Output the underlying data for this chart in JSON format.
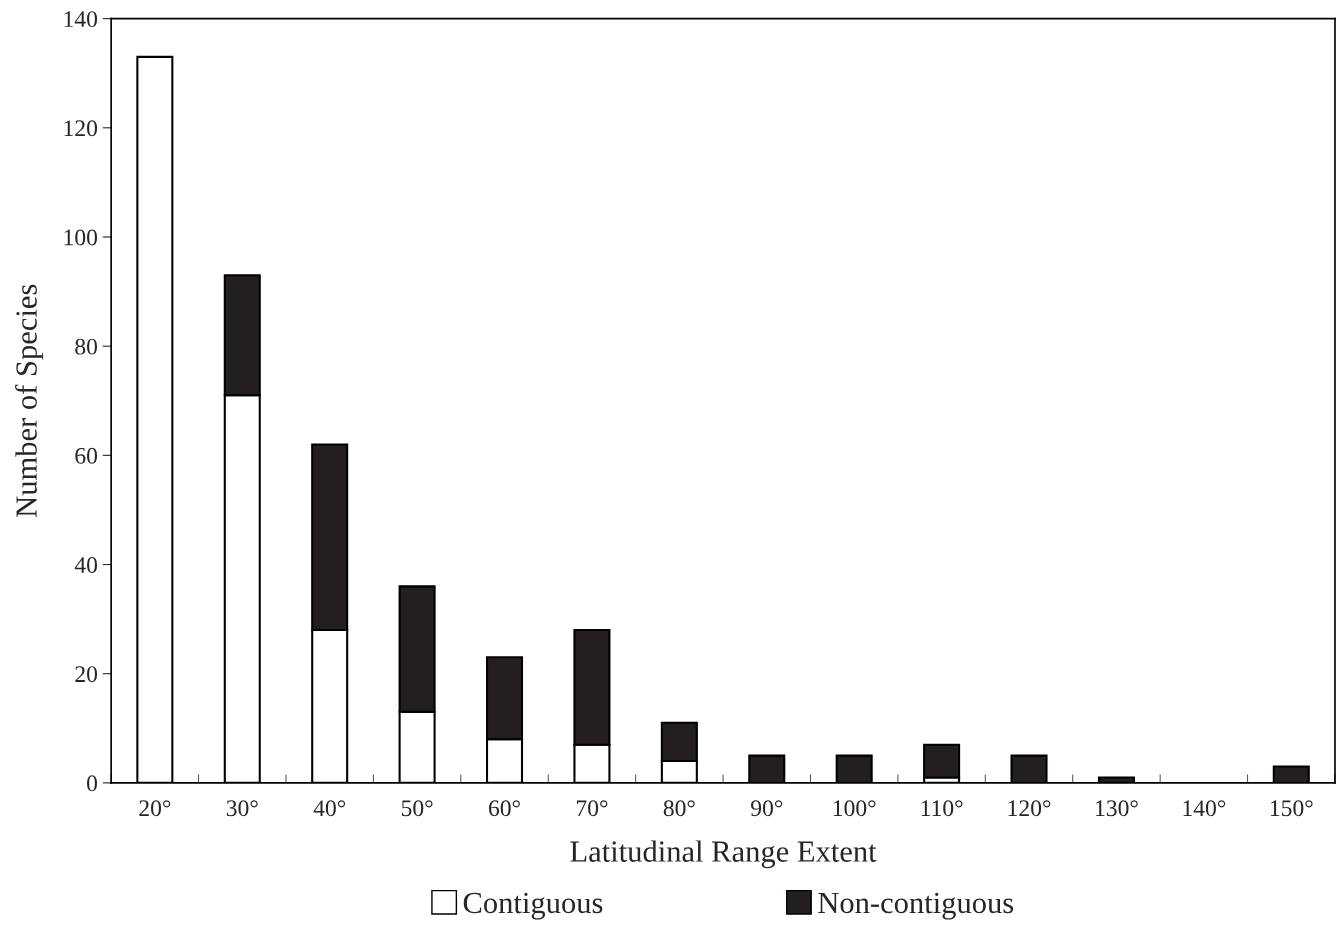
{
  "chart_data": {
    "type": "bar",
    "xlabel": "Latitudinal Range Extent",
    "ylabel": "Number of Species",
    "categories": [
      "20°",
      "30°",
      "40°",
      "50°",
      "60°",
      "70°",
      "80°",
      "90°",
      "100°",
      "110°",
      "120°",
      "130°",
      "140°",
      "150°"
    ],
    "stacked": true,
    "series": [
      {
        "name": "Contiguous",
        "color": "#ffffff",
        "values": [
          133,
          71,
          28,
          13,
          8,
          7,
          4,
          null,
          null,
          1,
          null,
          null,
          null,
          null
        ]
      },
      {
        "name": "Non-contiguous",
        "color": "#231f20",
        "values": [
          null,
          22,
          34,
          23,
          15,
          21,
          7,
          5,
          5,
          6,
          5,
          1,
          null,
          3
        ]
      }
    ],
    "ylim": [
      0,
      140
    ],
    "yticks": [
      0,
      20,
      40,
      60,
      80,
      100,
      120,
      140
    ],
    "grid": false,
    "legend": "bottom"
  }
}
